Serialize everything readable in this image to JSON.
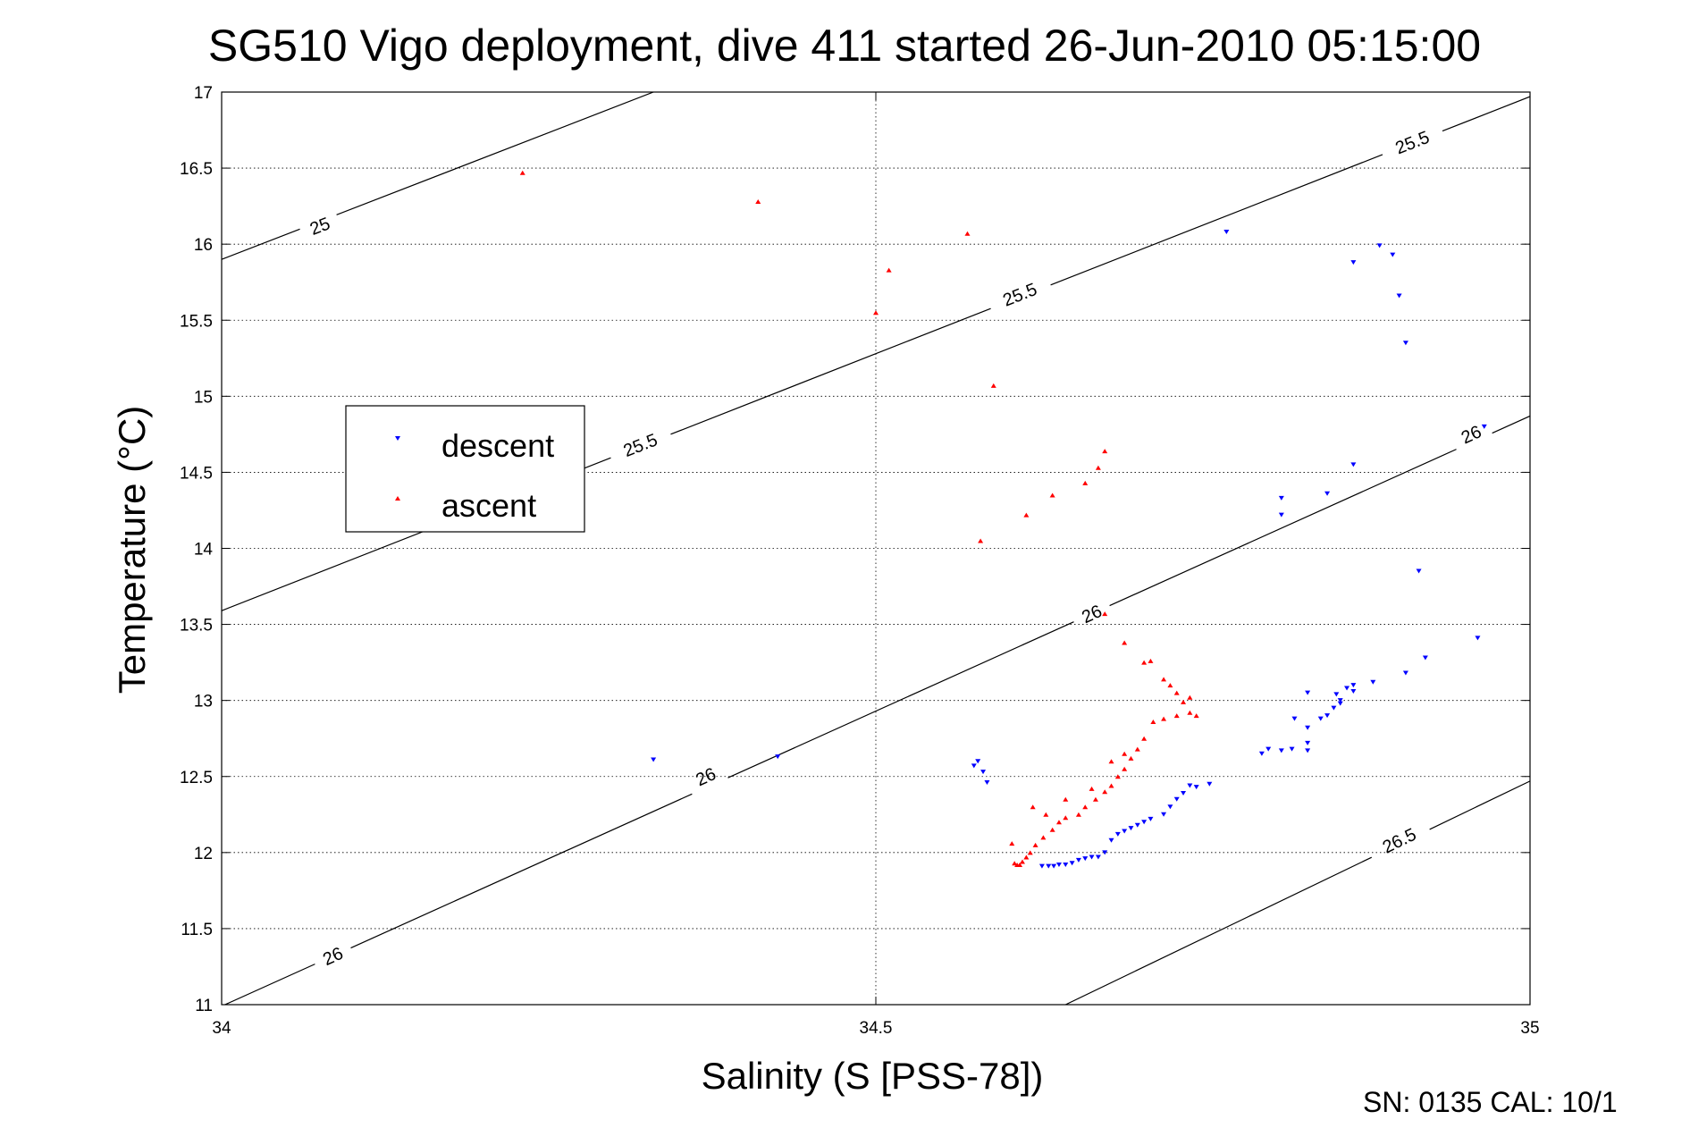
{
  "chart_data": {
    "type": "scatter",
    "title": "SG510 Vigo deployment, dive 411 started 26-Jun-2010 05:15:00",
    "xlabel": "Salinity (S [PSS-78])",
    "ylabel": "Temperature (°C)",
    "xlim": [
      34,
      35
    ],
    "ylim": [
      11,
      17
    ],
    "xticks": [
      34,
      34.5,
      35
    ],
    "xtick_labels": [
      "34",
      "34.5",
      "35"
    ],
    "yticks": [
      11,
      11.5,
      12,
      12.5,
      13,
      13.5,
      14,
      14.5,
      15,
      15.5,
      16,
      16.5,
      17
    ],
    "ytick_labels": [
      "11",
      "11.5",
      "12",
      "12.5",
      "13",
      "13.5",
      "14",
      "14.5",
      "15",
      "15.5",
      "16",
      "16.5",
      "17"
    ],
    "grid": true,
    "legend_position": "left",
    "footer": "SN: 0135  CAL: 10/1",
    "contours": [
      {
        "label": "25",
        "points": [
          [
            34,
            15.9
          ],
          [
            34.33,
            17
          ]
        ],
        "label_positions": [
          [
            34.075,
            16.12
          ]
        ]
      },
      {
        "label": "25.5",
        "points": [
          [
            34,
            13.59
          ],
          [
            35,
            16.97
          ]
        ],
        "label_positions": [
          [
            34.32,
            14.68
          ],
          [
            34.61,
            15.67
          ],
          [
            34.91,
            16.67
          ]
        ]
      },
      {
        "label": "26",
        "points": [
          [
            34,
            10.99
          ],
          [
            35,
            14.87
          ]
        ],
        "label_positions": [
          [
            34.085,
            11.32
          ],
          [
            34.37,
            12.5
          ],
          [
            34.665,
            13.57
          ],
          [
            34.955,
            14.75
          ]
        ]
      },
      {
        "label": "26.5",
        "points": [
          [
            34.645,
            11
          ],
          [
            35,
            12.47
          ]
        ],
        "label_positions": [
          [
            34.9,
            12.08
          ]
        ]
      }
    ],
    "series": [
      {
        "name": "descent",
        "color": "#0000ff",
        "marker": "triangle-down",
        "points": [
          [
            34.33,
            12.61
          ],
          [
            34.425,
            12.63
          ],
          [
            34.575,
            12.57
          ],
          [
            34.578,
            12.6
          ],
          [
            34.582,
            12.53
          ],
          [
            34.585,
            12.46
          ],
          [
            34.627,
            11.91
          ],
          [
            34.632,
            11.91
          ],
          [
            34.636,
            11.91
          ],
          [
            34.64,
            11.92
          ],
          [
            34.645,
            11.92
          ],
          [
            34.65,
            11.93
          ],
          [
            34.655,
            11.95
          ],
          [
            34.66,
            11.96
          ],
          [
            34.665,
            11.97
          ],
          [
            34.67,
            11.97
          ],
          [
            34.675,
            12.0
          ],
          [
            34.68,
            12.08
          ],
          [
            34.685,
            12.12
          ],
          [
            34.69,
            12.14
          ],
          [
            34.695,
            12.16
          ],
          [
            34.7,
            12.18
          ],
          [
            34.705,
            12.2
          ],
          [
            34.71,
            12.22
          ],
          [
            34.72,
            12.25
          ],
          [
            34.725,
            12.3
          ],
          [
            34.73,
            12.35
          ],
          [
            34.735,
            12.39
          ],
          [
            34.74,
            12.44
          ],
          [
            34.745,
            12.43
          ],
          [
            34.755,
            12.45
          ],
          [
            34.768,
            16.08
          ],
          [
            34.795,
            12.65
          ],
          [
            34.81,
            12.67
          ],
          [
            34.818,
            12.68
          ],
          [
            34.83,
            12.67
          ],
          [
            34.8,
            12.68
          ],
          [
            34.83,
            12.72
          ],
          [
            34.83,
            12.82
          ],
          [
            34.84,
            12.88
          ],
          [
            34.845,
            12.9
          ],
          [
            34.85,
            12.95
          ],
          [
            34.855,
            13.0
          ],
          [
            34.86,
            13.08
          ],
          [
            34.865,
            13.1
          ],
          [
            34.865,
            13.06
          ],
          [
            34.852,
            13.04
          ],
          [
            34.82,
            12.88
          ],
          [
            34.81,
            14.22
          ],
          [
            34.81,
            14.33
          ],
          [
            34.845,
            14.36
          ],
          [
            34.865,
            14.55
          ],
          [
            34.83,
            13.05
          ],
          [
            34.855,
            12.98
          ],
          [
            34.88,
            13.12
          ],
          [
            34.905,
            13.18
          ],
          [
            34.92,
            13.28
          ],
          [
            34.865,
            15.88
          ],
          [
            34.885,
            15.99
          ],
          [
            34.895,
            15.93
          ],
          [
            34.9,
            15.66
          ],
          [
            34.905,
            15.35
          ],
          [
            34.915,
            13.85
          ],
          [
            34.96,
            13.41
          ],
          [
            34.965,
            14.8
          ]
        ]
      },
      {
        "name": "ascent",
        "color": "#ff0000",
        "marker": "triangle-up",
        "points": [
          [
            34.23,
            16.47
          ],
          [
            34.41,
            16.28
          ],
          [
            34.57,
            16.07
          ],
          [
            34.51,
            15.83
          ],
          [
            34.5,
            15.55
          ],
          [
            34.59,
            15.07
          ],
          [
            34.58,
            14.05
          ],
          [
            34.615,
            14.22
          ],
          [
            34.635,
            14.35
          ],
          [
            34.66,
            14.43
          ],
          [
            34.67,
            14.53
          ],
          [
            34.675,
            14.64
          ],
          [
            34.675,
            13.57
          ],
          [
            34.69,
            13.38
          ],
          [
            34.705,
            13.25
          ],
          [
            34.71,
            13.26
          ],
          [
            34.72,
            13.14
          ],
          [
            34.725,
            13.1
          ],
          [
            34.73,
            13.05
          ],
          [
            34.735,
            12.99
          ],
          [
            34.74,
            12.92
          ],
          [
            34.74,
            13.02
          ],
          [
            34.745,
            12.9
          ],
          [
            34.73,
            12.9
          ],
          [
            34.72,
            12.88
          ],
          [
            34.712,
            12.86
          ],
          [
            34.705,
            12.75
          ],
          [
            34.7,
            12.68
          ],
          [
            34.695,
            12.62
          ],
          [
            34.69,
            12.55
          ],
          [
            34.685,
            12.5
          ],
          [
            34.68,
            12.44
          ],
          [
            34.675,
            12.4
          ],
          [
            34.668,
            12.35
          ],
          [
            34.66,
            12.3
          ],
          [
            34.655,
            12.25
          ],
          [
            34.645,
            12.23
          ],
          [
            34.64,
            12.2
          ],
          [
            34.635,
            12.15
          ],
          [
            34.628,
            12.1
          ],
          [
            34.622,
            12.05
          ],
          [
            34.618,
            12.0
          ],
          [
            34.615,
            11.97
          ],
          [
            34.612,
            11.94
          ],
          [
            34.61,
            11.92
          ],
          [
            34.608,
            11.92
          ],
          [
            34.606,
            11.93
          ],
          [
            34.604,
            12.06
          ],
          [
            34.62,
            12.3
          ],
          [
            34.63,
            12.25
          ],
          [
            34.645,
            12.35
          ],
          [
            34.665,
            12.42
          ],
          [
            34.68,
            12.6
          ],
          [
            34.69,
            12.65
          ]
        ]
      }
    ]
  }
}
